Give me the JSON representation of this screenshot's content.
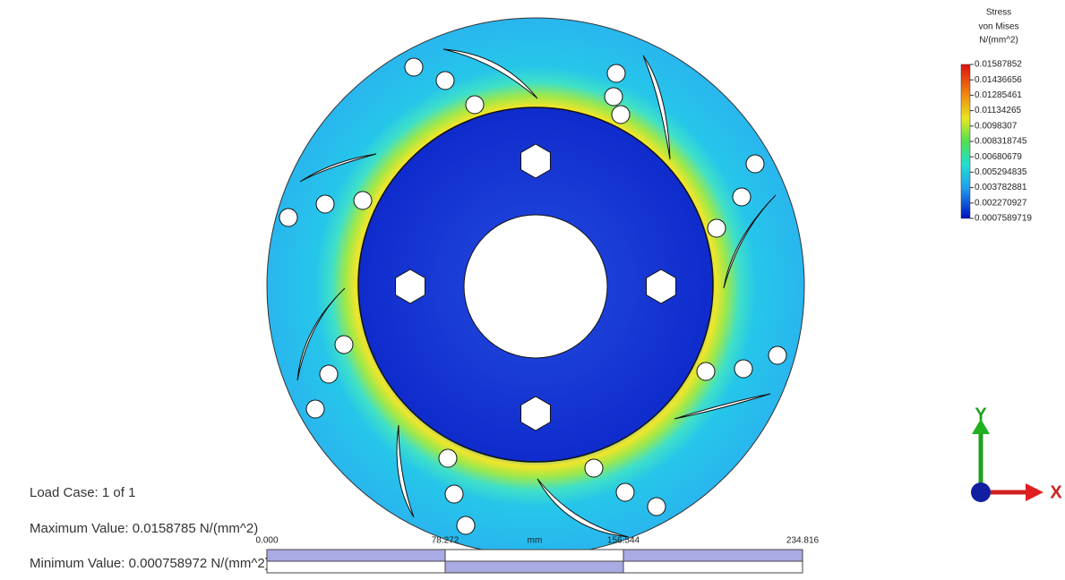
{
  "legend": {
    "title": "Stress",
    "subtitle": "von Mises",
    "unit": "N/(mm^2)",
    "values": [
      "0.01587852",
      "0.01436656",
      "0.01285461",
      "0.01134265",
      "0.0098307",
      "0.008318745",
      "0.00680679",
      "0.005294835",
      "0.003782881",
      "0.002270927",
      "0.0007589719"
    ]
  },
  "info": {
    "load_case": "Load Case:  1 of 1",
    "maximum": "Maximum Value: 0.0158785 N/(mm^2)",
    "minimum": "Minimum Value: 0.000758972 N/(mm^2)"
  },
  "scale_bar": {
    "labels": [
      "0.000",
      "78.272",
      "156.544",
      "234.816"
    ],
    "unit": "mm"
  },
  "triad": {
    "x": "X",
    "y": "Y"
  }
}
